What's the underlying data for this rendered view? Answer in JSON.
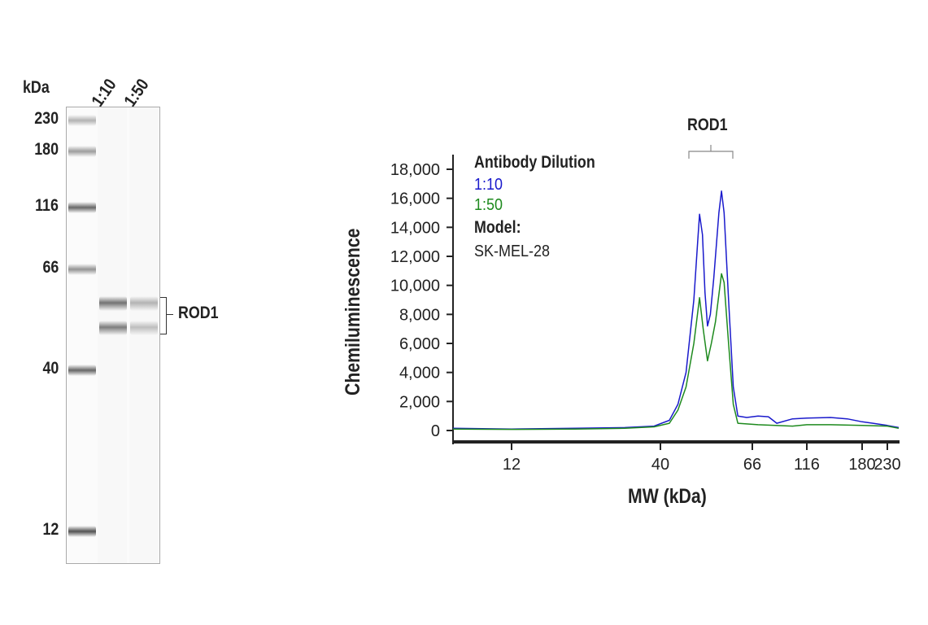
{
  "chart_data": [
    {
      "type": "table",
      "kind": "simulated blot",
      "unit_label": "kDa",
      "lanes": [
        "1:10",
        "1:50"
      ],
      "ladder": [
        {
          "label": "230",
          "kda": 230,
          "intensity": 0.35
        },
        {
          "label": "180",
          "kda": 180,
          "intensity": 0.45
        },
        {
          "label": "116",
          "kda": 116,
          "intensity": 0.7
        },
        {
          "label": "66",
          "kda": 66,
          "intensity": 0.5
        },
        {
          "label": "40",
          "kda": 40,
          "intensity": 0.7
        },
        {
          "label": "12",
          "kda": 12,
          "intensity": 0.8
        }
      ],
      "bands": [
        {
          "lane": "1:10",
          "kda": 58,
          "intensity": 0.65
        },
        {
          "lane": "1:10",
          "kda": 52,
          "intensity": 0.6
        },
        {
          "lane": "1:50",
          "kda": 58,
          "intensity": 0.35
        },
        {
          "lane": "1:50",
          "kda": 52,
          "intensity": 0.3
        }
      ],
      "annotation": "ROD1"
    },
    {
      "type": "line",
      "annotation": "ROD1",
      "xlabel": "MW (kDa)",
      "ylabel": "Chemiluminescence",
      "xscale": "nonlinear (MW)",
      "xticks": [
        "12",
        "40",
        "66",
        "116",
        "180",
        "230"
      ],
      "yticks": [
        "0",
        "2,000",
        "4,000",
        "6,000",
        "8,000",
        "10,000",
        "12,000",
        "14,000",
        "16,000",
        "18,000"
      ],
      "ylim": [
        0,
        18000
      ],
      "xlim": [
        8,
        260
      ],
      "grid": false,
      "legend": {
        "title": "Antibody Dilution",
        "model_label": "Model:",
        "model": "SK-MEL-28",
        "placement": "top-left"
      },
      "series": [
        {
          "name": "1:10",
          "color": "#1a1acc",
          "points": [
            [
              8,
              150
            ],
            [
              12,
              100
            ],
            [
              20,
              150
            ],
            [
              30,
              200
            ],
            [
              38,
              300
            ],
            [
              42,
              700
            ],
            [
              44,
              1800
            ],
            [
              46,
              4000
            ],
            [
              48,
              9000
            ],
            [
              49,
              13000
            ],
            [
              49.5,
              14900
            ],
            [
              50.3,
              13500
            ],
            [
              51,
              9500
            ],
            [
              51.7,
              7200
            ],
            [
              52.5,
              8000
            ],
            [
              53.5,
              10500
            ],
            [
              55,
              15000
            ],
            [
              55.8,
              16500
            ],
            [
              56.6,
              15000
            ],
            [
              58,
              9000
            ],
            [
              59.5,
              3000
            ],
            [
              61,
              1000
            ],
            [
              64,
              900
            ],
            [
              70,
              1000
            ],
            [
              78,
              950
            ],
            [
              85,
              500
            ],
            [
              100,
              800
            ],
            [
              116,
              850
            ],
            [
              140,
              900
            ],
            [
              160,
              800
            ],
            [
              180,
              600
            ],
            [
              200,
              500
            ],
            [
              230,
              350
            ],
            [
              260,
              200
            ]
          ]
        },
        {
          "name": "1:50",
          "color": "#1e8a1e",
          "points": [
            [
              8,
              100
            ],
            [
              12,
              80
            ],
            [
              20,
              100
            ],
            [
              30,
              150
            ],
            [
              38,
              250
            ],
            [
              42,
              500
            ],
            [
              44,
              1400
            ],
            [
              46,
              3000
            ],
            [
              48,
              6000
            ],
            [
              49.5,
              9150
            ],
            [
              50.5,
              7000
            ],
            [
              51.7,
              4800
            ],
            [
              52.8,
              6000
            ],
            [
              54,
              7500
            ],
            [
              55.8,
              10800
            ],
            [
              56.6,
              10200
            ],
            [
              58,
              6000
            ],
            [
              59.5,
              1800
            ],
            [
              61,
              500
            ],
            [
              70,
              400
            ],
            [
              100,
              300
            ],
            [
              116,
              400
            ],
            [
              140,
              400
            ],
            [
              180,
              350
            ],
            [
              230,
              300
            ],
            [
              260,
              150
            ]
          ]
        }
      ]
    }
  ]
}
